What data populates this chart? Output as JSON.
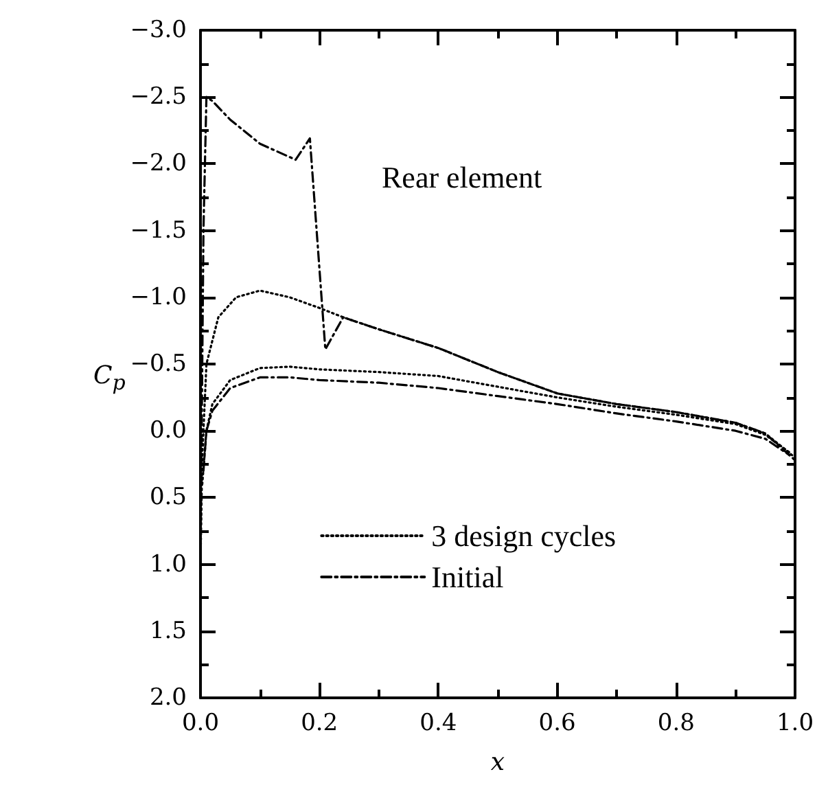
{
  "chart_data": {
    "type": "line",
    "xlabel": "x",
    "ylabel": "C$_{p}$",
    "annotations": [
      "Rear element"
    ],
    "xlim": [
      0,
      1
    ],
    "xticks": [
      {
        "value": 0,
        "label": "0.0"
      },
      {
        "value": 0.1,
        "label": null
      },
      {
        "value": 0.2,
        "label": "0.2"
      },
      {
        "value": 0.3,
        "label": null
      },
      {
        "value": 0.4,
        "label": "0.4"
      },
      {
        "value": 0.5,
        "label": null
      },
      {
        "value": 0.6,
        "label": "0.6"
      },
      {
        "value": 0.7,
        "label": null
      },
      {
        "value": 0.8,
        "label": "0.8"
      },
      {
        "value": 0.9,
        "label": null
      },
      {
        "value": 1,
        "label": "1.0"
      }
    ],
    "ylim": [
      2,
      -3
    ],
    "yticks": [
      {
        "value": -3,
        "label": "−3.0"
      },
      {
        "value": -2.75,
        "label": null
      },
      {
        "value": -2.5,
        "label": "−2.5"
      },
      {
        "value": -2.25,
        "label": null
      },
      {
        "value": -2,
        "label": "−2.0"
      },
      {
        "value": -1.75,
        "label": null
      },
      {
        "value": -1.5,
        "label": "−1.5"
      },
      {
        "value": -1.25,
        "label": null
      },
      {
        "value": -1,
        "label": "−1.0"
      },
      {
        "value": -0.75,
        "label": null
      },
      {
        "value": -0.5,
        "label": "−0.5"
      },
      {
        "value": -0.25,
        "label": null
      },
      {
        "value": 0,
        "label": "0.0"
      },
      {
        "value": 0.25,
        "label": null
      },
      {
        "value": 0.5,
        "label": "0.5"
      },
      {
        "value": 0.75,
        "label": null
      },
      {
        "value": 1,
        "label": "1.0"
      },
      {
        "value": 1.25,
        "label": null
      },
      {
        "value": 1.5,
        "label": "1.5"
      },
      {
        "value": 1.75,
        "label": null
      },
      {
        "value": 2,
        "label": "2.0"
      }
    ],
    "grid": false,
    "legend": "bottom",
    "marker": "none",
    "series": [
      {
        "name": "3 design cycles",
        "color": "#000000",
        "line_style": "dotted",
        "x": [
          0,
          0.003,
          0.01,
          0.03,
          0.06,
          0.1,
          0.15,
          0.2,
          0.24,
          0.3,
          0.4,
          0.5,
          0.6,
          0.7,
          0.8,
          0.9,
          0.95,
          1
        ],
        "values": [
          1.0,
          0.2,
          -0.5,
          -0.85,
          -1.0,
          -1.05,
          -1.0,
          -0.92,
          -0.85,
          -0.76,
          -0.62,
          -0.44,
          -0.28,
          -0.2,
          -0.14,
          -0.06,
          0.02,
          0.2
        ]
      },
      {
        "color": "#000000",
        "line_style": "dotted",
        "x": [
          0.003,
          0.01,
          0.02,
          0.05,
          0.1,
          0.15,
          0.2,
          0.3,
          0.4,
          0.5,
          0.6,
          0.7,
          0.8,
          0.9,
          0.95,
          0.99
        ],
        "values": [
          0.4,
          0,
          -0.2,
          -0.38,
          -0.47,
          -0.48,
          -0.46,
          -0.44,
          -0.41,
          -0.33,
          -0.25,
          -0.18,
          -0.12,
          -0.05,
          0.03,
          0.16
        ]
      },
      {
        "name": "Initial",
        "color": "#000000",
        "line_style": "dashed",
        "x": [
          0,
          0.005,
          0.01,
          0.02,
          0.05,
          0.1,
          0.16,
          0.184,
          0.21,
          0.24,
          0.3,
          0.4,
          0.5,
          0.6,
          0.7,
          0.8,
          0.9,
          0.95,
          1
        ],
        "values": [
          1.0,
          -1.5,
          -2.5,
          -2.47,
          -2.33,
          -2.15,
          -2.03,
          -2.19,
          -0.61,
          -0.85,
          -0.76,
          -0.62,
          -0.44,
          -0.28,
          -0.2,
          -0.14,
          -0.06,
          0.02,
          0.22
        ]
      },
      {
        "color": "#000000",
        "line_style": "dashed",
        "x": [
          0.005,
          0.01,
          0.02,
          0.05,
          0.1,
          0.15,
          0.2,
          0.3,
          0.4,
          0.5,
          0.6,
          0.7,
          0.8,
          0.9,
          0.95,
          0.99
        ],
        "values": [
          0.3,
          0,
          -0.15,
          -0.32,
          -0.4,
          -0.4,
          -0.38,
          -0.36,
          -0.32,
          -0.26,
          -0.2,
          -0.13,
          -0.07,
          0,
          0.06,
          0.18
        ]
      }
    ]
  }
}
